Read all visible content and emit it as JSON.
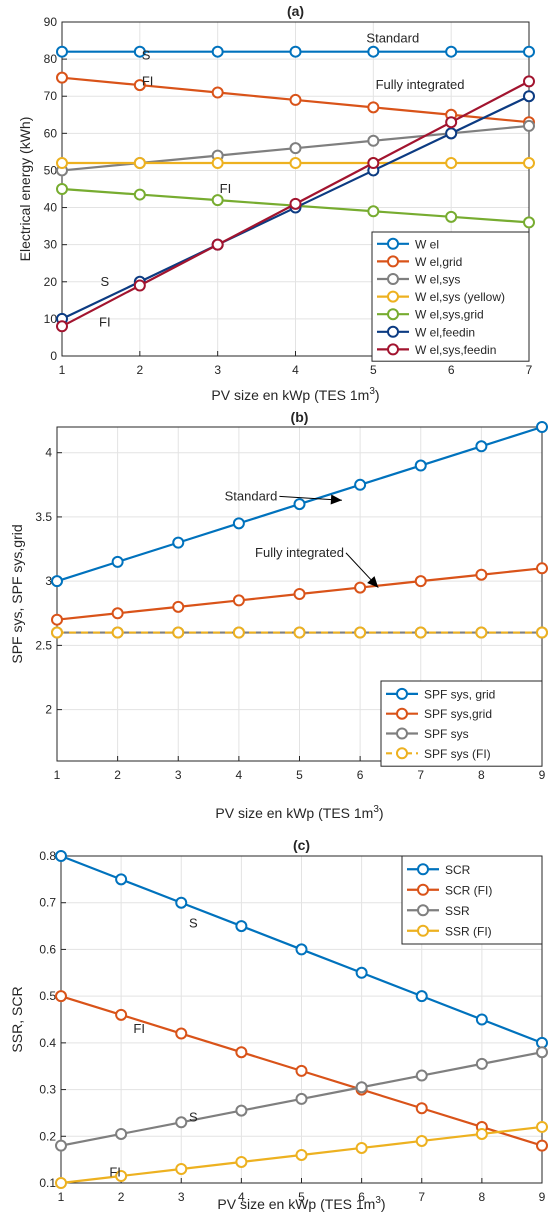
{
  "chart_data": [
    {
      "type": "line",
      "title": "(a)",
      "xlabel": "PV size en kWp (TES 1m",
      "xlabel_sup": "3",
      "xlabel_end": ")",
      "ylabel": "Electrical energy (kWh)",
      "xlim": [
        1,
        7
      ],
      "ylim": [
        0,
        90
      ],
      "xticks": [
        1,
        2,
        3,
        4,
        5,
        6,
        7
      ],
      "yticks": [
        0,
        10,
        20,
        30,
        40,
        50,
        60,
        70,
        80,
        90
      ],
      "grid": true,
      "legend_position": "bottom-right",
      "x": [
        1,
        2,
        3,
        4,
        5,
        6,
        7
      ],
      "series": [
        {
          "name": "W el",
          "color": "#0072BD",
          "values": [
            82,
            82,
            82,
            82,
            82,
            82,
            82
          ]
        },
        {
          "name": "W el,grid",
          "color": "#D95319",
          "values": [
            75,
            73,
            71,
            69,
            67,
            65,
            63
          ]
        },
        {
          "name": "W el,sys",
          "color": "#7F7F7F",
          "values": [
            50,
            52,
            54,
            56,
            58,
            60,
            62
          ]
        },
        {
          "name": "W el,sys (yellow)",
          "color": "#EDB120",
          "values": [
            52,
            52,
            52,
            52,
            52,
            52,
            52
          ]
        },
        {
          "name": "W el,sys,grid",
          "color": "#77AC30",
          "values": [
            45,
            43.5,
            42,
            40.5,
            39,
            37.5,
            36
          ]
        },
        {
          "name": "W el,feedin",
          "color": "#0C3B82",
          "values": [
            10,
            20,
            30,
            40,
            50,
            60,
            70
          ]
        },
        {
          "name": "W el,sys,feedin",
          "color": "#A2142F",
          "values": [
            8,
            19,
            30,
            41,
            52,
            63,
            74
          ]
        }
      ],
      "annotations": [
        {
          "text": "Standard",
          "x": 5.25,
          "y": 85.5
        },
        {
          "text": "S",
          "x": 2.08,
          "y": 81
        },
        {
          "text": "FI",
          "x": 2.1,
          "y": 74
        },
        {
          "text": "Fully integrated",
          "x": 5.6,
          "y": 73
        },
        {
          "text": "FI",
          "x": 3.1,
          "y": 45
        },
        {
          "text": "S",
          "x": 1.55,
          "y": 20
        },
        {
          "text": "FI",
          "x": 1.55,
          "y": 9
        }
      ]
    },
    {
      "type": "line",
      "title": "(b)",
      "xlabel": "PV size en kWp (TES 1m",
      "xlabel_sup": "3",
      "xlabel_end": ")",
      "ylabel": "SPF sys, SPF sys,grid",
      "xlim": [
        1,
        9
      ],
      "ylim": [
        1.6,
        4.2
      ],
      "xticks": [
        1,
        2,
        3,
        4,
        5,
        6,
        7,
        8,
        9
      ],
      "yticks": [
        2,
        2.5,
        3,
        3.5,
        4
      ],
      "grid": true,
      "legend_position": "bottom-right",
      "x": [
        1,
        2,
        3,
        4,
        5,
        6,
        7,
        8,
        9
      ],
      "series": [
        {
          "name": "SPF sys, grid",
          "color": "#0072BD",
          "values": [
            3.0,
            3.15,
            3.3,
            3.45,
            3.6,
            3.75,
            3.9,
            4.05,
            4.2
          ]
        },
        {
          "name": "SPF sys,grid",
          "color": "#D95319",
          "values": [
            2.7,
            2.75,
            2.8,
            2.85,
            2.9,
            2.95,
            3.0,
            3.05,
            3.1
          ]
        },
        {
          "name": "SPF sys",
          "color": "#7F7F7F",
          "values": [
            2.6,
            2.6,
            2.6,
            2.6,
            2.6,
            2.6,
            2.6,
            2.6,
            2.6
          ]
        },
        {
          "name": "SPF sys (FI)",
          "color": "#EDB120",
          "dashed": true,
          "values": [
            2.6,
            2.6,
            2.6,
            2.6,
            2.6,
            2.6,
            2.6,
            2.6,
            2.6
          ]
        }
      ],
      "annotations": [
        {
          "text": "Standard",
          "x": 4.2,
          "y": 3.66,
          "arrow_to": [
            5.7,
            3.63
          ]
        },
        {
          "text": "Fully integrated",
          "x": 5.0,
          "y": 3.22,
          "arrow_to": [
            6.3,
            2.95
          ]
        }
      ]
    },
    {
      "type": "line",
      "title": "(c)",
      "xlabel": "PV size en kWp (TES 1m",
      "xlabel_sup": "3",
      "xlabel_end": ")",
      "ylabel": "SSR, SCR",
      "xlim": [
        1,
        9
      ],
      "ylim": [
        0.1,
        0.8
      ],
      "xticks": [
        1,
        2,
        3,
        4,
        5,
        6,
        7,
        8,
        9
      ],
      "yticks": [
        0.1,
        0.2,
        0.3,
        0.4,
        0.5,
        0.6,
        0.7,
        0.8
      ],
      "grid": true,
      "legend_position": "top-right",
      "x": [
        1,
        2,
        3,
        4,
        5,
        6,
        7,
        8,
        9
      ],
      "series": [
        {
          "name": "SCR",
          "color": "#0072BD",
          "values": [
            0.8,
            0.75,
            0.7,
            0.65,
            0.6,
            0.55,
            0.5,
            0.45,
            0.4
          ]
        },
        {
          "name": "SCR (FI)",
          "color": "#D95319",
          "values": [
            0.5,
            0.46,
            0.42,
            0.38,
            0.34,
            0.3,
            0.26,
            0.22,
            0.18
          ]
        },
        {
          "name": "SSR",
          "color": "#7F7F7F",
          "values": [
            0.18,
            0.205,
            0.23,
            0.255,
            0.28,
            0.305,
            0.33,
            0.355,
            0.38
          ]
        },
        {
          "name": "SSR (FI)",
          "color": "#EDB120",
          "values": [
            0.1,
            0.115,
            0.13,
            0.145,
            0.16,
            0.175,
            0.19,
            0.205,
            0.22
          ]
        }
      ],
      "annotations": [
        {
          "text": "S",
          "x": 3.2,
          "y": 0.655
        },
        {
          "text": "FI",
          "x": 2.3,
          "y": 0.43
        },
        {
          "text": "S",
          "x": 3.2,
          "y": 0.24
        },
        {
          "text": "FI",
          "x": 1.9,
          "y": 0.123
        }
      ]
    }
  ]
}
